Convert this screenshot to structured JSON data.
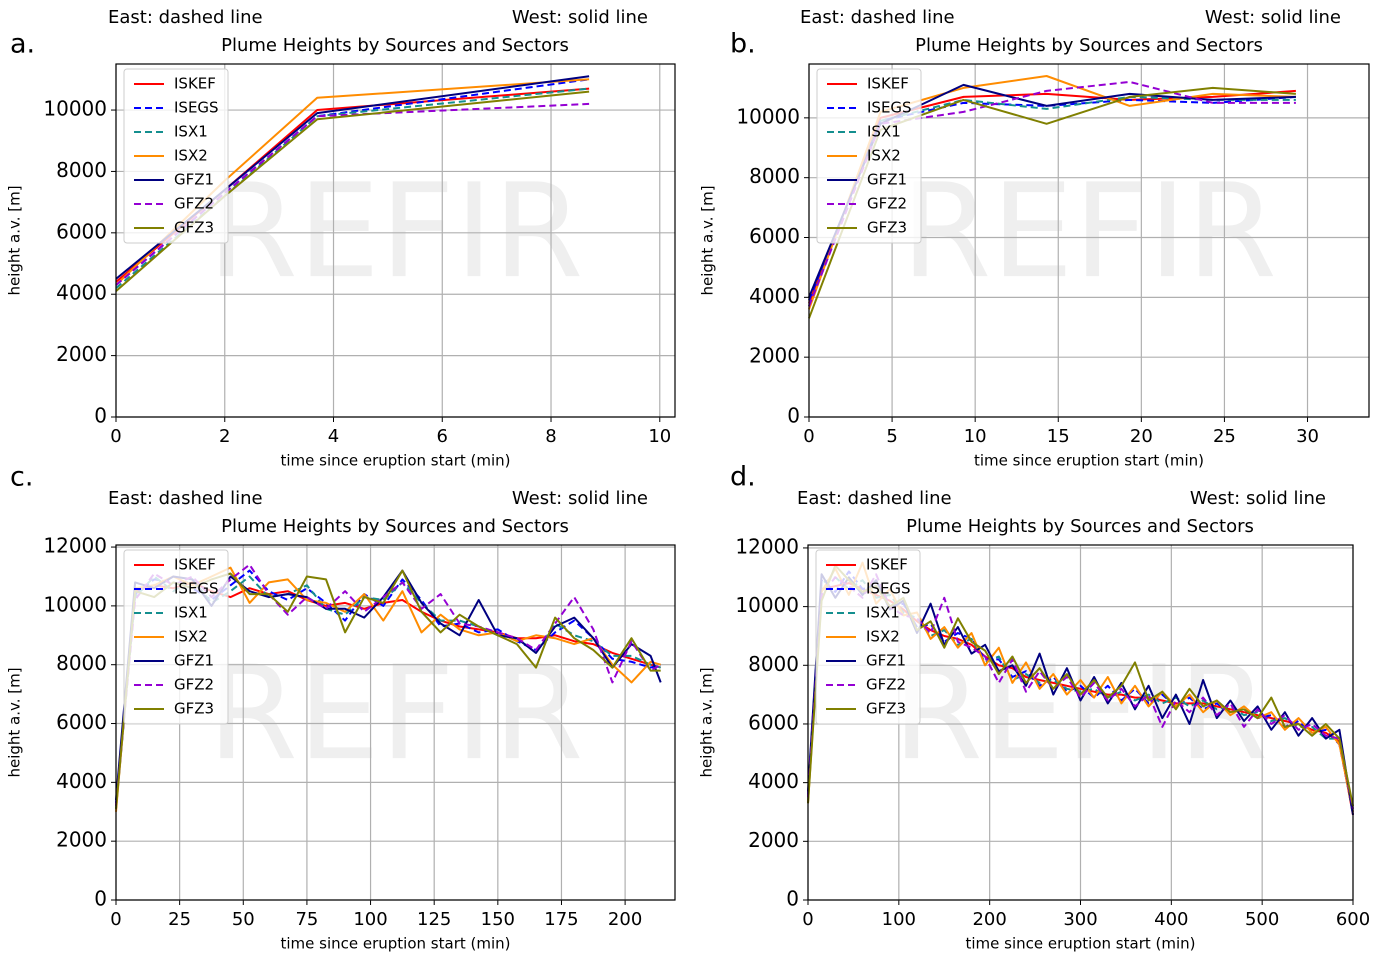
{
  "chart_data": [
    {
      "type": "line",
      "panel_label": "a.",
      "east_note": "East: dashed line",
      "west_note": "West: solid line",
      "title": "Plume Heights by Sources and Sectors",
      "xlabel": "time since eruption start (min)",
      "ylabel": "height a.v. [m]",
      "watermark": "REFIR",
      "xlim": [
        0,
        10.28
      ],
      "ylim": [
        0,
        11500
      ],
      "xticks": [
        0,
        2,
        4,
        6,
        8,
        10
      ],
      "yticks": [
        0,
        2000,
        4000,
        6000,
        8000,
        10000
      ],
      "grid": true,
      "legend": "upper left",
      "x": [
        0,
        2,
        3.7,
        8.7
      ],
      "series": [
        {
          "name": "ISKEF",
          "color": "#ff0000",
          "dashed": false,
          "values": [
            4400,
            7400,
            10000,
            10700
          ]
        },
        {
          "name": "ISEGS",
          "color": "#0000ff",
          "dashed": true,
          "values": [
            4300,
            7300,
            9800,
            11000
          ]
        },
        {
          "name": "ISX1",
          "color": "#148f8f",
          "dashed": true,
          "values": [
            4200,
            7200,
            9800,
            10700
          ]
        },
        {
          "name": "ISX2",
          "color": "#ff8c00",
          "dashed": false,
          "values": [
            4300,
            7700,
            10400,
            11000
          ]
        },
        {
          "name": "GFZ1",
          "color": "#000080",
          "dashed": false,
          "values": [
            4500,
            7400,
            9900,
            11100
          ]
        },
        {
          "name": "GFZ2",
          "color": "#9400d3",
          "dashed": true,
          "values": [
            4300,
            7300,
            9800,
            10200
          ]
        },
        {
          "name": "GFZ3",
          "color": "#808000",
          "dashed": false,
          "values": [
            4100,
            7200,
            9700,
            10600
          ]
        }
      ]
    },
    {
      "type": "line",
      "panel_label": "b.",
      "east_note": "East: dashed line",
      "west_note": "West: solid line",
      "title": "Plume Heights by Sources and Sectors",
      "xlabel": "time since eruption start (min)",
      "ylabel": "height a.v. [m]",
      "watermark": "REFIR",
      "xlim": [
        0,
        33.7
      ],
      "ylim": [
        0,
        11800
      ],
      "xticks": [
        0,
        5,
        10,
        15,
        20,
        25,
        30
      ],
      "yticks": [
        0,
        2000,
        4000,
        6000,
        8000,
        10000
      ],
      "grid": true,
      "legend": "upper left",
      "x": [
        0,
        4.3,
        9.3,
        14.3,
        19.3,
        24.3,
        29.3
      ],
      "series": [
        {
          "name": "ISKEF",
          "color": "#ff0000",
          "dashed": false,
          "values": [
            3800,
            10000,
            10700,
            10800,
            10600,
            10700,
            10900
          ]
        },
        {
          "name": "ISEGS",
          "color": "#0000ff",
          "dashed": true,
          "values": [
            3900,
            9900,
            10500,
            10400,
            10600,
            10500,
            10700
          ]
        },
        {
          "name": "ISX1",
          "color": "#148f8f",
          "dashed": true,
          "values": [
            3700,
            9900,
            10600,
            10300,
            10700,
            10600,
            10600
          ]
        },
        {
          "name": "ISX2",
          "color": "#ff8c00",
          "dashed": false,
          "values": [
            3600,
            10200,
            11000,
            11400,
            10400,
            10800,
            10700
          ]
        },
        {
          "name": "GFZ1",
          "color": "#000080",
          "dashed": false,
          "values": [
            4000,
            9800,
            11100,
            10400,
            10800,
            10600,
            10700
          ]
        },
        {
          "name": "GFZ2",
          "color": "#9400d3",
          "dashed": true,
          "values": [
            3700,
            9800,
            10200,
            10900,
            11200,
            10500,
            10500
          ]
        },
        {
          "name": "GFZ3",
          "color": "#808000",
          "dashed": false,
          "values": [
            3300,
            9600,
            10600,
            9800,
            10700,
            11000,
            10800
          ]
        }
      ]
    },
    {
      "type": "line",
      "panel_label": "c.",
      "east_note": "East: dashed line",
      "west_note": "West: solid line",
      "title": "Plume Heights by Sources and Sectors",
      "xlabel": "time since eruption start (min)",
      "ylabel": "height a.v. [m]",
      "watermark": "REFIR",
      "xlim": [
        0,
        219.6
      ],
      "ylim": [
        0,
        12070
      ],
      "xticks": [
        0,
        25,
        50,
        75,
        100,
        125,
        150,
        175,
        200
      ],
      "yticks": [
        0,
        2000,
        4000,
        6000,
        8000,
        10000,
        12000
      ],
      "grid": true,
      "legend": "upper left",
      "x": [
        0,
        7.5,
        15,
        22.5,
        30,
        37.5,
        45,
        52.5,
        60,
        67.5,
        75,
        82.5,
        90,
        97.5,
        105,
        112.5,
        120,
        127.5,
        135,
        142.5,
        150,
        157.5,
        165,
        172.5,
        180,
        187.5,
        195,
        202.5,
        210,
        214
      ],
      "series": [
        {
          "name": "ISKEF",
          "color": "#ff0000",
          "dashed": false,
          "values": [
            3200,
            10500,
            10700,
            10600,
            10800,
            10500,
            10300,
            10600,
            10400,
            10500,
            10200,
            10000,
            10100,
            9900,
            10100,
            10200,
            9800,
            9500,
            9300,
            9200,
            9100,
            8900,
            8900,
            9000,
            8800,
            8700,
            8400,
            8200,
            8000,
            7900
          ]
        },
        {
          "name": "ISEGS",
          "color": "#0000ff",
          "dashed": true,
          "values": [
            3300,
            10400,
            10900,
            10800,
            10600,
            10200,
            10700,
            11200,
            10500,
            10200,
            10600,
            10100,
            9500,
            10400,
            10000,
            10900,
            10200,
            9300,
            9400,
            9100,
            9200,
            8800,
            8500,
            9100,
            9500,
            8900,
            8200,
            8100,
            7900,
            8000
          ]
        },
        {
          "name": "ISX1",
          "color": "#148f8f",
          "dashed": true,
          "values": [
            3100,
            10300,
            11000,
            10500,
            10900,
            10100,
            10500,
            11000,
            10300,
            10400,
            10700,
            9900,
            9700,
            10300,
            10200,
            10800,
            10100,
            9500,
            9500,
            9300,
            9000,
            8900,
            8400,
            9400,
            9000,
            8800,
            8300,
            8300,
            8000,
            7900
          ]
        },
        {
          "name": "ISX2",
          "color": "#ff8c00",
          "dashed": false,
          "values": [
            3000,
            10600,
            10700,
            11000,
            10700,
            11000,
            11300,
            10100,
            10800,
            10900,
            10200,
            10100,
            9800,
            10400,
            9500,
            10500,
            9100,
            9700,
            9200,
            9000,
            9100,
            8800,
            9000,
            8900,
            8700,
            8900,
            8000,
            7400,
            8100,
            8000
          ]
        },
        {
          "name": "GFZ1",
          "color": "#000080",
          "dashed": false,
          "values": [
            3400,
            10800,
            10600,
            11000,
            10900,
            10000,
            11000,
            10500,
            10300,
            10400,
            10300,
            9900,
            9900,
            9600,
            10300,
            11200,
            10100,
            9400,
            9000,
            10200,
            9000,
            8900,
            8400,
            9300,
            9600,
            8900,
            7900,
            8700,
            8300,
            7400
          ]
        },
        {
          "name": "GFZ2",
          "color": "#9400d3",
          "dashed": true,
          "values": [
            3200,
            10200,
            11100,
            10700,
            11000,
            10300,
            10900,
            11400,
            10400,
            9700,
            10300,
            9900,
            10500,
            9800,
            10300,
            10800,
            9900,
            10400,
            9400,
            9300,
            9100,
            8900,
            8500,
            9400,
            10300,
            9200,
            7400,
            8800,
            7800,
            8000
          ]
        },
        {
          "name": "GFZ3",
          "color": "#808000",
          "dashed": false,
          "values": [
            3100,
            10500,
            10300,
            10800,
            10600,
            10900,
            11100,
            10400,
            10400,
            9800,
            11000,
            10900,
            9100,
            10300,
            10100,
            11200,
            9800,
            9100,
            9700,
            9300,
            9000,
            8700,
            7900,
            9600,
            8900,
            8500,
            7900,
            8900,
            7800,
            7800
          ]
        }
      ]
    },
    {
      "type": "line",
      "panel_label": "d.",
      "east_note": "East: dashed line",
      "west_note": "West: solid line",
      "title": "Plume Heights by Sources and Sectors",
      "xlabel": "time since eruption start (min)",
      "ylabel": "height a.v. [m]",
      "watermark": "REFIR",
      "xlim": [
        0,
        600
      ],
      "ylim": [
        0,
        12100
      ],
      "xticks": [
        0,
        100,
        200,
        300,
        400,
        500,
        600
      ],
      "yticks": [
        0,
        2000,
        4000,
        6000,
        8000,
        10000,
        12000
      ],
      "grid": true,
      "legend": "upper left",
      "x": [
        0,
        15,
        30,
        45,
        60,
        75,
        90,
        105,
        120,
        135,
        150,
        165,
        180,
        195,
        210,
        225,
        240,
        255,
        270,
        285,
        300,
        315,
        330,
        345,
        360,
        375,
        390,
        405,
        420,
        435,
        450,
        465,
        480,
        495,
        510,
        525,
        540,
        555,
        570,
        585,
        600
      ],
      "series": [
        {
          "name": "ISKEF",
          "color": "#ff0000",
          "dashed": false,
          "values": [
            3500,
            10600,
            10700,
            10800,
            10600,
            10400,
            10200,
            9900,
            9500,
            9200,
            9000,
            8900,
            8700,
            8300,
            8000,
            7900,
            7600,
            7500,
            7400,
            7300,
            7200,
            7100,
            7000,
            7000,
            6900,
            6900,
            6800,
            6700,
            6700,
            6700,
            6600,
            6500,
            6400,
            6300,
            6200,
            6100,
            6000,
            5800,
            5700,
            5400,
            2900
          ]
        },
        {
          "name": "ISEGS",
          "color": "#0000ff",
          "dashed": true,
          "values": [
            3600,
            10900,
            10500,
            11200,
            10600,
            10700,
            10000,
            10100,
            9300,
            9400,
            8800,
            9100,
            8900,
            8200,
            8200,
            7600,
            7800,
            7300,
            7600,
            7100,
            7300,
            6900,
            7300,
            6800,
            7200,
            6700,
            7000,
            6600,
            6900,
            6500,
            6700,
            6400,
            6500,
            6200,
            6300,
            5900,
            6100,
            5700,
            5800,
            5300,
            3000
          ]
        },
        {
          "name": "ISX1",
          "color": "#148f8f",
          "dashed": true,
          "values": [
            3400,
            10800,
            11000,
            10600,
            10900,
            10300,
            10400,
            9800,
            9600,
            9000,
            9200,
            8700,
            8900,
            8100,
            8300,
            7500,
            7700,
            7400,
            7500,
            7200,
            7100,
            7200,
            6900,
            7100,
            6800,
            7000,
            6700,
            6900,
            6600,
            6800,
            6500,
            6600,
            6300,
            6400,
            6100,
            6200,
            5900,
            5900,
            5500,
            5500,
            2900
          ]
        },
        {
          "name": "ISX2",
          "color": "#ff8c00",
          "dashed": false,
          "values": [
            3300,
            10500,
            11300,
            10400,
            11500,
            10100,
            10600,
            9700,
            9800,
            8900,
            9300,
            8600,
            9100,
            8000,
            8600,
            7400,
            8100,
            7200,
            7700,
            7000,
            7500,
            6900,
            7600,
            6700,
            7300,
            6600,
            7100,
            6600,
            7000,
            6400,
            6800,
            6300,
            6600,
            6200,
            6400,
            5800,
            6200,
            5700,
            5900,
            5300,
            3000
          ]
        },
        {
          "name": "GFZ1",
          "color": "#000080",
          "dashed": false,
          "values": [
            3700,
            11100,
            10300,
            11000,
            10400,
            10900,
            9900,
            10200,
            9100,
            10100,
            8700,
            9300,
            8400,
            8700,
            7800,
            8000,
            7300,
            8400,
            7000,
            7900,
            6800,
            7600,
            6700,
            7400,
            6500,
            7300,
            6200,
            7000,
            6000,
            7500,
            6200,
            6800,
            6100,
            6600,
            5800,
            6400,
            5600,
            6200,
            5500,
            5800,
            2900
          ]
        },
        {
          "name": "GFZ2",
          "color": "#9400d3",
          "dashed": true,
          "values": [
            3500,
            10400,
            11000,
            10700,
            10300,
            11100,
            10000,
            9700,
            9600,
            9100,
            10300,
            8800,
            8600,
            8300,
            7400,
            8200,
            7100,
            7800,
            7200,
            7600,
            6900,
            7400,
            6800,
            7200,
            6600,
            7000,
            5900,
            6800,
            6400,
            6900,
            6300,
            6700,
            5900,
            6500,
            6000,
            6300,
            5800,
            6000,
            5600,
            5500,
            3100
          ]
        },
        {
          "name": "GFZ3",
          "color": "#808000",
          "dashed": false,
          "values": [
            3300,
            10200,
            11400,
            10900,
            10500,
            10700,
            10000,
            10300,
            9200,
            9500,
            8600,
            9600,
            8800,
            8500,
            7700,
            8300,
            7400,
            7900,
            7200,
            7700,
            7000,
            7500,
            6900,
            7300,
            8100,
            6800,
            7100,
            6500,
            7200,
            6600,
            6800,
            6400,
            6500,
            6200,
            6900,
            5900,
            6000,
            5600,
            6000,
            5500,
            3200
          ]
        }
      ]
    }
  ]
}
